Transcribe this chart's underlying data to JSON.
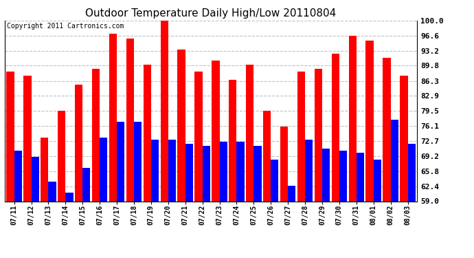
{
  "title": "Outdoor Temperature Daily High/Low 20110804",
  "copyright": "Copyright 2011 Cartronics.com",
  "dates": [
    "07/11",
    "07/12",
    "07/13",
    "07/14",
    "07/15",
    "07/16",
    "07/17",
    "07/18",
    "07/19",
    "07/20",
    "07/21",
    "07/22",
    "07/23",
    "07/24",
    "07/25",
    "07/26",
    "07/27",
    "07/28",
    "07/29",
    "07/30",
    "07/31",
    "08/01",
    "08/02",
    "08/03"
  ],
  "highs": [
    88.5,
    87.5,
    73.5,
    79.5,
    85.5,
    89.0,
    97.0,
    96.0,
    90.0,
    100.0,
    93.5,
    88.5,
    91.0,
    86.5,
    90.0,
    79.5,
    76.0,
    88.5,
    89.0,
    92.5,
    96.5,
    95.5,
    91.5,
    87.5
  ],
  "lows": [
    70.5,
    69.0,
    63.5,
    61.0,
    66.5,
    73.5,
    77.0,
    77.0,
    73.0,
    73.0,
    72.0,
    71.5,
    72.5,
    72.5,
    71.5,
    68.5,
    62.5,
    73.0,
    71.0,
    70.5,
    70.0,
    68.5,
    77.5,
    72.0
  ],
  "high_color": "#ff0000",
  "low_color": "#0000ff",
  "bg_color": "#ffffff",
  "grid_color": "#c0c0c0",
  "yticks": [
    59.0,
    62.4,
    65.8,
    69.2,
    72.7,
    76.1,
    79.5,
    82.9,
    86.3,
    89.8,
    93.2,
    96.6,
    100.0
  ],
  "ymin": 59.0,
  "ymax": 100.0,
  "bar_width": 0.45
}
